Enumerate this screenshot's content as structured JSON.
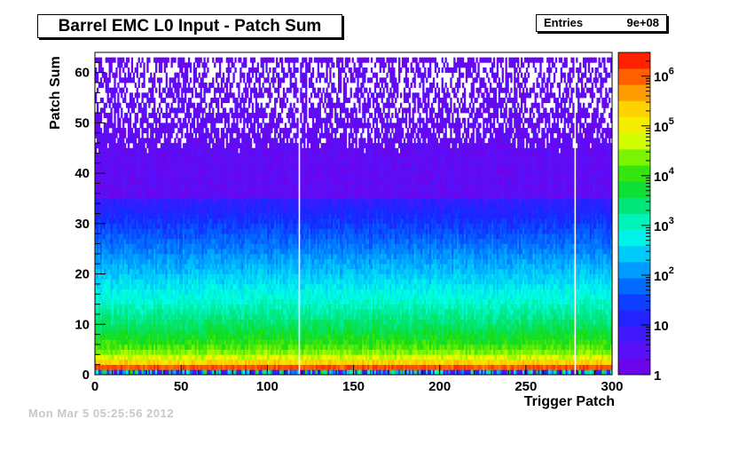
{
  "chart_data": {
    "type": "heatmap",
    "title": "Barrel EMC L0 Input - Patch Sum",
    "xlabel": "Trigger Patch",
    "ylabel": "Patch Sum",
    "xlim": [
      0,
      300
    ],
    "ylim": [
      0,
      64
    ],
    "x_ticks": [
      "0",
      "50",
      "100",
      "150",
      "200",
      "250",
      "300"
    ],
    "y_ticks": [
      "0",
      "10",
      "20",
      "30",
      "40",
      "50",
      "60"
    ],
    "z_scale": "log",
    "zlim": [
      1,
      3000000
    ],
    "z_tick_labels": [
      {
        "base": "1",
        "exp": ""
      },
      {
        "base": "10",
        "exp": ""
      },
      {
        "base": "10",
        "exp": "2"
      },
      {
        "base": "10",
        "exp": "3"
      },
      {
        "base": "10",
        "exp": "4"
      },
      {
        "base": "10",
        "exp": "5"
      },
      {
        "base": "10",
        "exp": "6"
      }
    ],
    "empty_columns": [
      118,
      278
    ],
    "z_profile_by_patch_sum": [
      {
        "y": 0,
        "z": 100
      },
      {
        "y": 1,
        "z": 2500000
      },
      {
        "y": 2,
        "z": 500000
      },
      {
        "y": 3,
        "z": 80000
      },
      {
        "y": 4,
        "z": 30000
      },
      {
        "y": 6,
        "z": 10000
      },
      {
        "y": 10,
        "z": 3000
      },
      {
        "y": 15,
        "z": 800
      },
      {
        "y": 20,
        "z": 250
      },
      {
        "y": 25,
        "z": 80
      },
      {
        "y": 30,
        "z": 25
      },
      {
        "y": 35,
        "z": 8
      },
      {
        "y": 40,
        "z": 4
      },
      {
        "y": 45,
        "z": 2
      },
      {
        "y": 50,
        "z": 1.5
      },
      {
        "y": 55,
        "z": 1.2
      },
      {
        "y": 60,
        "z": 1
      },
      {
        "y": 62,
        "z": 1
      }
    ]
  },
  "stats": {
    "entries_label": "Entries",
    "entries_value": "9e+08"
  },
  "footer": {
    "timestamp": "Mon Mar  5 05:25:56 2012"
  }
}
